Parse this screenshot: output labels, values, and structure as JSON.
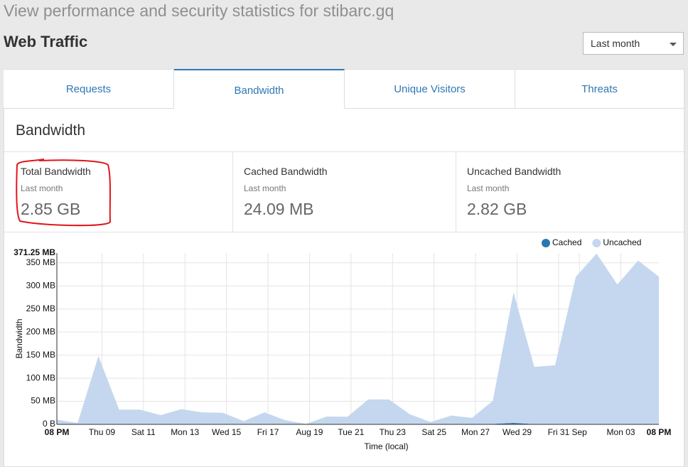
{
  "header": {
    "subtitle": "View performance and security statistics for stibarc.gq",
    "title": "Web Traffic",
    "range_select": "Last month"
  },
  "tabs": [
    "Requests",
    "Bandwidth",
    "Unique Visitors",
    "Threats"
  ],
  "active_tab": 1,
  "section_title": "Bandwidth",
  "stats": [
    {
      "title": "Total Bandwidth",
      "period": "Last month",
      "value": "2.85 GB"
    },
    {
      "title": "Cached Bandwidth",
      "period": "Last month",
      "value": "24.09 MB"
    },
    {
      "title": "Uncached Bandwidth",
      "period": "Last month",
      "value": "2.82 GB"
    }
  ],
  "chart_data": {
    "type": "area",
    "stacked": true,
    "y_label": "Bandwidth",
    "x_label": "Time (local)",
    "x": [
      6.83,
      7.83,
      8.83,
      9.83,
      10.83,
      11.83,
      12.83,
      13.83,
      14.83,
      15.83,
      16.83,
      17.83,
      18.83,
      19.83,
      20.83,
      21.83,
      22.83,
      23.83,
      24.83,
      25.83,
      26.83,
      27.83,
      28.83,
      29.83,
      30.83,
      31.83,
      32.83,
      33.83,
      34.83,
      35.83
    ],
    "series": [
      {
        "name": "Cached",
        "color": "#2a77b1",
        "values": [
          0,
          0,
          0,
          0,
          0,
          0,
          0,
          0,
          0,
          0,
          0,
          0,
          0,
          0,
          0.5,
          1,
          0,
          0,
          0,
          0,
          0,
          1,
          3,
          0.5,
          1,
          0,
          0,
          0,
          0,
          0
        ]
      },
      {
        "name": "Uncached",
        "color": "#c5d7ef",
        "values": [
          10,
          3,
          148,
          32,
          32,
          20,
          33,
          26,
          25,
          7,
          26,
          9,
          1,
          17,
          16,
          53,
          54,
          22,
          5,
          19,
          14,
          50,
          283,
          124,
          127,
          320,
          370,
          303,
          355,
          320
        ]
      }
    ],
    "xlim": [
      6.83,
      35.83
    ],
    "xticks": [
      {
        "value": 6.83,
        "label": "08 PM"
      },
      {
        "value": 9,
        "label": "Thu 09"
      },
      {
        "value": 11,
        "label": "Sat 11"
      },
      {
        "value": 13,
        "label": "Mon 13"
      },
      {
        "value": 15,
        "label": "Wed 15"
      },
      {
        "value": 17,
        "label": "Fri 17"
      },
      {
        "value": 19,
        "label": "Aug 19"
      },
      {
        "value": 21,
        "label": "Tue 21"
      },
      {
        "value": 23,
        "label": "Thu 23"
      },
      {
        "value": 25,
        "label": "Sat 25"
      },
      {
        "value": 27,
        "label": "Mon 27"
      },
      {
        "value": 29,
        "label": "Wed 29"
      },
      {
        "value": 31,
        "label": "Fri 31"
      },
      {
        "value": 32,
        "label": "Sep"
      },
      {
        "value": 34,
        "label": "Mon 03"
      },
      {
        "value": 35.83,
        "label": "08 PM"
      }
    ],
    "ylim": [
      0,
      371.25
    ],
    "yticks": [
      {
        "value": 0,
        "label": "0 B"
      },
      {
        "value": 50,
        "label": "50 MB"
      },
      {
        "value": 100,
        "label": "100 MB"
      },
      {
        "value": 150,
        "label": "150 MB"
      },
      {
        "value": 200,
        "label": "200 MB"
      },
      {
        "value": 250,
        "label": "250 MB"
      },
      {
        "value": 300,
        "label": "300 MB"
      },
      {
        "value": 350,
        "label": "350 MB"
      },
      {
        "value": 371.25,
        "label": "371.25 MB"
      }
    ],
    "grid": true,
    "legend": "top-right"
  }
}
